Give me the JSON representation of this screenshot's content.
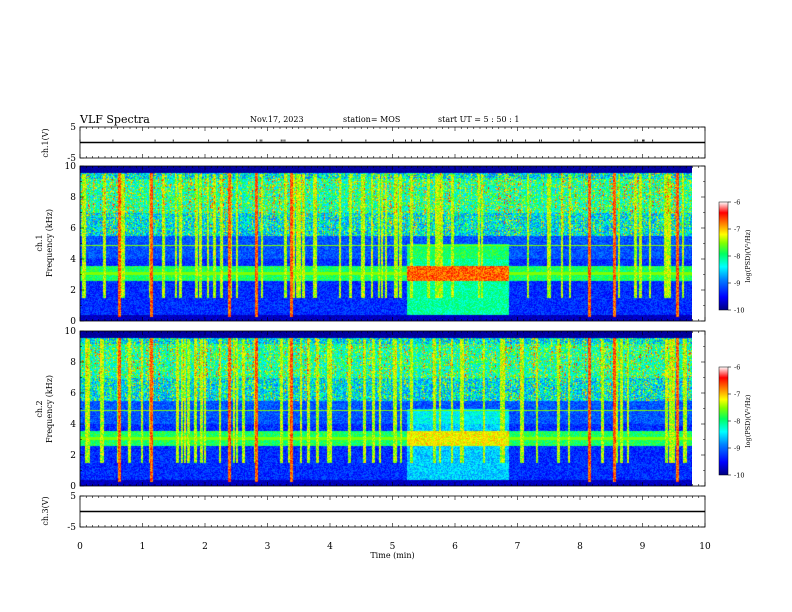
{
  "header": {
    "title": "VLF Spectra",
    "date": "Nov.17, 2023",
    "station": "station= MOS",
    "start_ut": "start  UT =  5 : 50 : 1"
  },
  "chart_data": [
    {
      "type": "line",
      "panel": "ch1-waveform",
      "ylabel": "ch.1(V)",
      "ylim": [
        -5,
        5
      ],
      "yticks": [
        "5",
        "-5"
      ],
      "series": [
        {
          "x": [
            0,
            10
          ],
          "y": [
            0,
            0
          ]
        }
      ]
    },
    {
      "type": "heatmap",
      "panel": "ch1-spectrogram",
      "ylabel": "ch.1\nFrequency (kHz)",
      "ylim": [
        0,
        10
      ],
      "yticks": [
        "0",
        "2",
        "4",
        "6",
        "8",
        "10"
      ],
      "colorbar": {
        "label": "log(PSD)(V²/Hz)",
        "ticks": [
          "-6",
          "-7",
          "-8",
          "-9",
          "-10"
        ],
        "range": [
          -10,
          -6
        ]
      }
    },
    {
      "type": "heatmap",
      "panel": "ch2-spectrogram",
      "ylabel": "ch.2\nFrequency (kHz)",
      "ylim": [
        0,
        10
      ],
      "yticks": [
        "0",
        "2",
        "4",
        "6",
        "8",
        "10"
      ],
      "colorbar": {
        "label": "log(PSD)(V²/Hz)",
        "ticks": [
          "-6",
          "-7",
          "-8",
          "-9",
          "-10"
        ],
        "range": [
          -10,
          -6
        ]
      }
    },
    {
      "type": "line",
      "panel": "ch3-waveform",
      "ylabel": "ch.3(V)",
      "ylim": [
        -5,
        5
      ],
      "yticks": [
        "5",
        "-5"
      ],
      "series": [
        {
          "x": [
            0,
            10
          ],
          "y": [
            0,
            0
          ]
        }
      ]
    }
  ],
  "xaxis": {
    "label": "Time  (min)",
    "range": [
      0,
      10
    ],
    "ticks": [
      "0",
      "1",
      "2",
      "3",
      "4",
      "5",
      "6",
      "7",
      "8",
      "9",
      "10"
    ]
  },
  "colors": {
    "colormap": [
      "#000080",
      "#0000ff",
      "#0080ff",
      "#00ffff",
      "#00ff80",
      "#80ff00",
      "#ffff00",
      "#ff8000",
      "#ff0000",
      "#ff80c0",
      "#ffffff"
    ]
  }
}
